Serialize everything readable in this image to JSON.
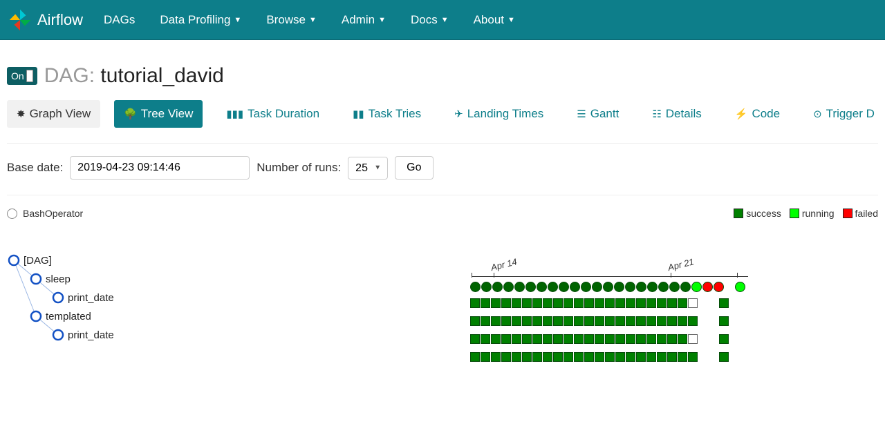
{
  "brand": "Airflow",
  "nav": [
    "DAGs",
    "Data Profiling",
    "Browse",
    "Admin",
    "Docs",
    "About"
  ],
  "nav_dropdown": [
    false,
    true,
    true,
    true,
    true,
    true
  ],
  "header": {
    "toggle": "On",
    "prefix": "DAG:",
    "dag_name": "tutorial_david"
  },
  "tabs": [
    {
      "label": "Graph View",
      "kind": "default"
    },
    {
      "label": "Tree View",
      "kind": "active"
    },
    {
      "label": "Task Duration",
      "kind": "link"
    },
    {
      "label": "Task Tries",
      "kind": "link"
    },
    {
      "label": "Landing Times",
      "kind": "link"
    },
    {
      "label": "Gantt",
      "kind": "link"
    },
    {
      "label": "Details",
      "kind": "link"
    },
    {
      "label": "Code",
      "kind": "link"
    },
    {
      "label": "Trigger D",
      "kind": "link"
    }
  ],
  "controls": {
    "base_date_label": "Base date:",
    "base_date_value": "2019-04-23 09:14:46",
    "num_runs_label": "Number of runs:",
    "num_runs_value": "25",
    "go": "Go"
  },
  "operator_legend": "BashOperator",
  "status_legend": [
    {
      "label": "success",
      "color": "#008000"
    },
    {
      "label": "running",
      "color": "#00ff00"
    },
    {
      "label": "failed",
      "color": "#ff0000"
    }
  ],
  "tree": {
    "nodes": [
      {
        "id": "dag",
        "label": "[DAG]",
        "depth": 0
      },
      {
        "id": "sleep",
        "label": "sleep",
        "depth": 1
      },
      {
        "id": "print_date1",
        "label": "print_date",
        "depth": 2
      },
      {
        "id": "templated",
        "label": "templated",
        "depth": 1
      },
      {
        "id": "print_date2",
        "label": "print_date",
        "depth": 2
      }
    ]
  },
  "timeline": {
    "dates": [
      {
        "label": "Apr 14",
        "col": 2
      },
      {
        "label": "Apr 21",
        "col": 18
      }
    ],
    "num_cols": 25,
    "colors": {
      "success": "#008000",
      "success_dark": "#006400",
      "running": "#00ff00",
      "failed": "#ff0000",
      "empty": "#ffffff"
    },
    "dag_row": [
      "sd",
      "sd",
      "sd",
      "sd",
      "sd",
      "sd",
      "sd",
      "sd",
      "sd",
      "sd",
      "sd",
      "sd",
      "sd",
      "sd",
      "sd",
      "sd",
      "sd",
      "sd",
      "sd",
      "sd",
      "r",
      "f",
      "f",
      "gap",
      "r"
    ],
    "task_rows": [
      [
        "s",
        "s",
        "s",
        "s",
        "s",
        "s",
        "s",
        "s",
        "s",
        "s",
        "s",
        "s",
        "s",
        "s",
        "s",
        "s",
        "s",
        "s",
        "s",
        "s",
        "s",
        "e",
        "gap",
        "gap",
        "s"
      ],
      [
        "s",
        "s",
        "s",
        "s",
        "s",
        "s",
        "s",
        "s",
        "s",
        "s",
        "s",
        "s",
        "s",
        "s",
        "s",
        "s",
        "s",
        "s",
        "s",
        "s",
        "s",
        "s",
        "gap",
        "gap",
        "s"
      ],
      [
        "s",
        "s",
        "s",
        "s",
        "s",
        "s",
        "s",
        "s",
        "s",
        "s",
        "s",
        "s",
        "s",
        "s",
        "s",
        "s",
        "s",
        "s",
        "s",
        "s",
        "s",
        "e",
        "gap",
        "gap",
        "s"
      ],
      [
        "s",
        "s",
        "s",
        "s",
        "s",
        "s",
        "s",
        "s",
        "s",
        "s",
        "s",
        "s",
        "s",
        "s",
        "s",
        "s",
        "s",
        "s",
        "s",
        "s",
        "s",
        "s",
        "gap",
        "gap",
        "s"
      ]
    ]
  },
  "style": {
    "navbar_bg": "#0d7e8a",
    "link_color": "#0d7e8a",
    "circle_stroke": "#1351c4"
  }
}
